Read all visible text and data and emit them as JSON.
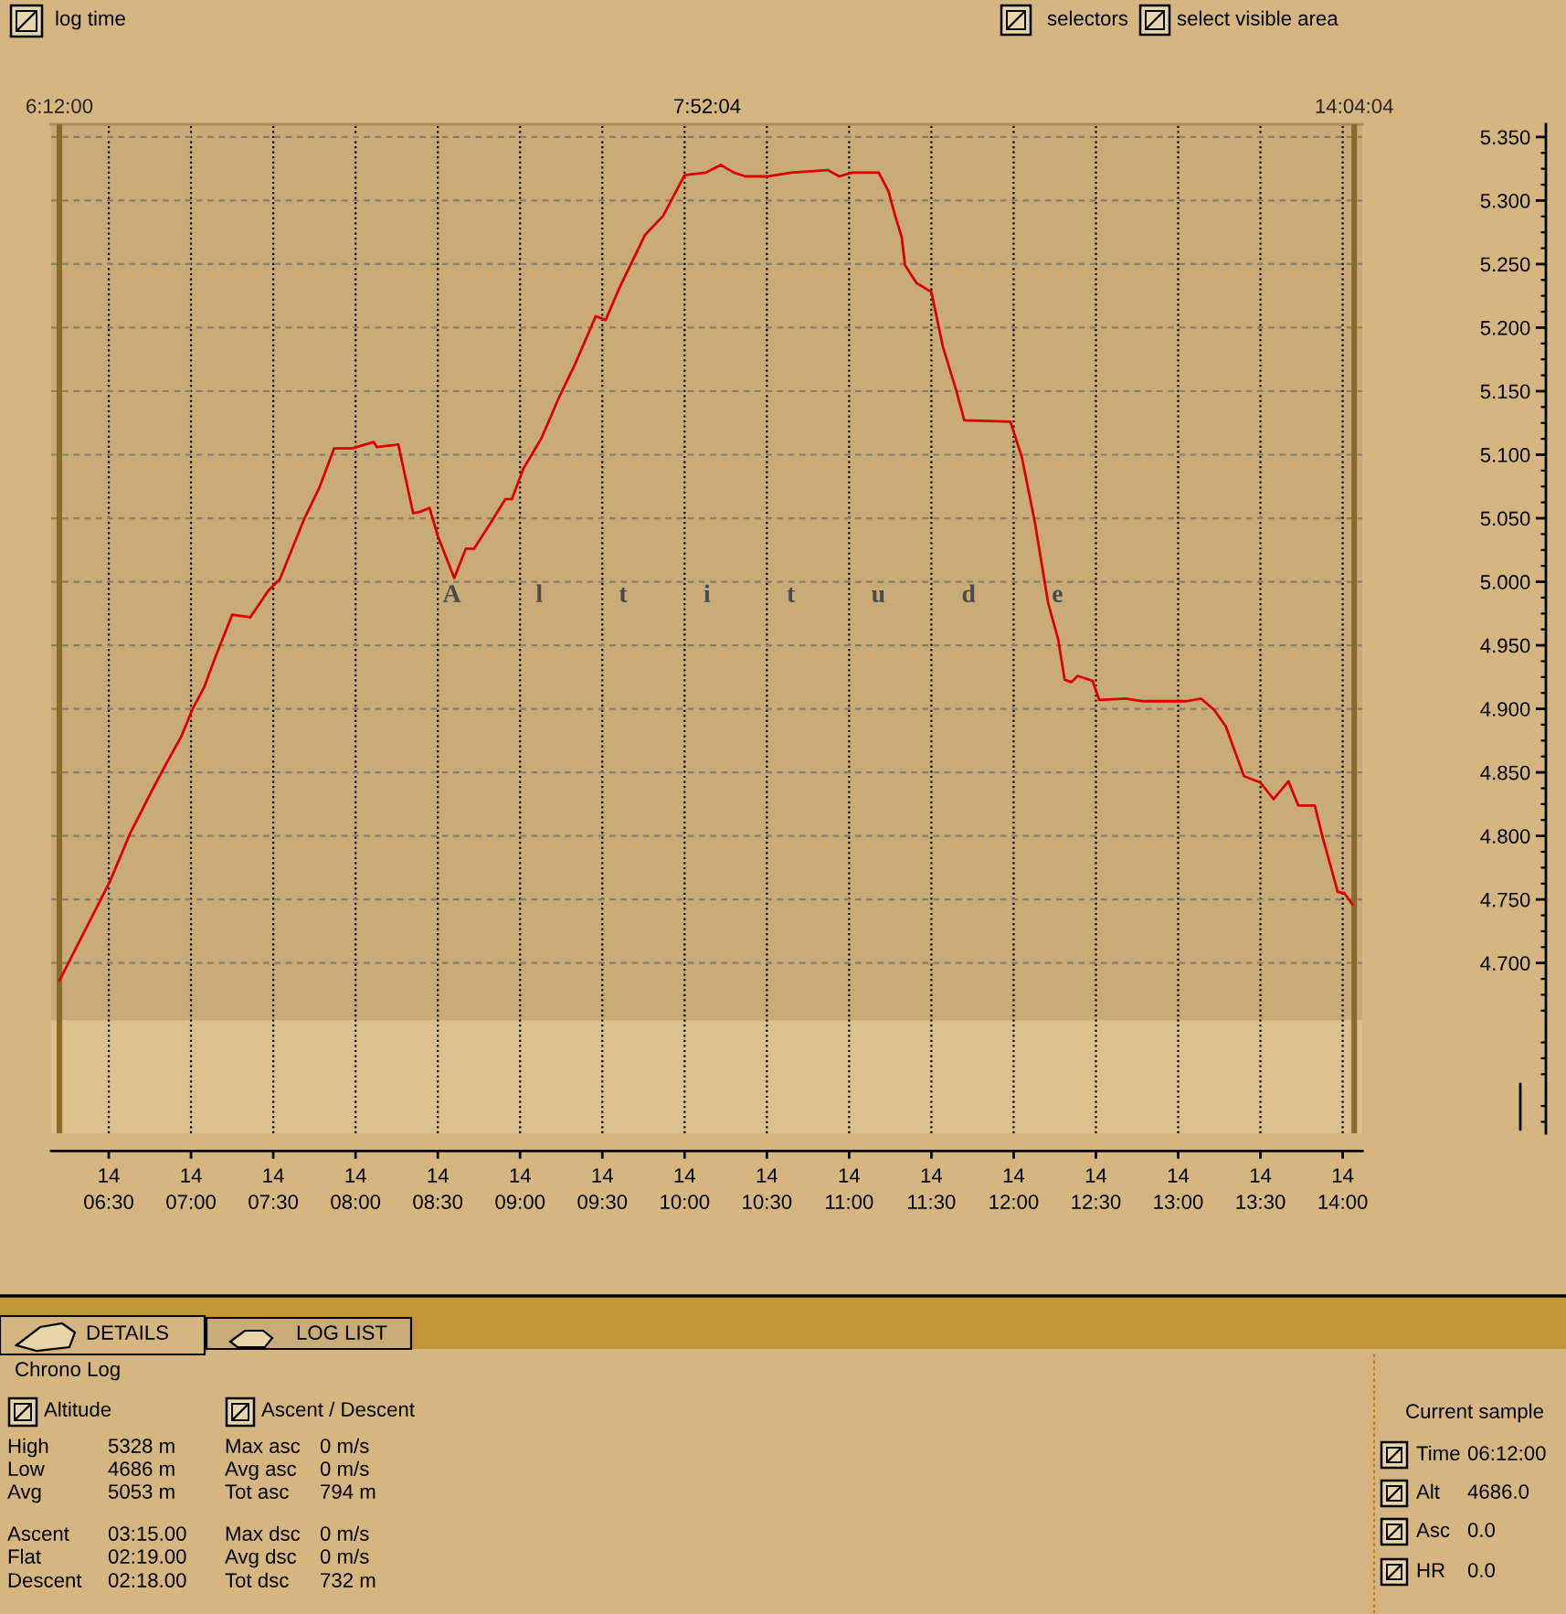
{
  "chart_data": {
    "type": "line",
    "x": [
      6.2,
      6.51,
      6.63,
      6.76,
      6.85,
      6.94,
      7.01,
      7.08,
      7.14,
      7.25,
      7.36,
      7.47,
      7.54,
      7.69,
      7.78,
      7.87,
      7.98,
      8.11,
      8.13,
      8.26,
      8.3,
      8.35,
      8.39,
      8.45,
      8.5,
      8.6,
      8.67,
      8.72,
      8.82,
      8.91,
      8.95,
      9.02,
      9.13,
      9.24,
      9.33,
      9.46,
      9.52,
      9.61,
      9.76,
      9.87,
      10.0,
      10.13,
      10.22,
      10.3,
      10.37,
      10.5,
      10.65,
      10.87,
      10.94,
      11.02,
      11.18,
      11.24,
      11.28,
      11.32,
      11.34,
      11.41,
      11.5,
      11.57,
      11.65,
      11.7,
      11.98,
      12.05,
      12.13,
      12.21,
      12.27,
      12.31,
      12.35,
      12.39,
      12.48,
      12.52,
      12.68,
      12.79,
      13.05,
      13.14,
      13.22,
      13.29,
      13.4,
      13.5,
      13.58,
      13.67,
      13.73,
      13.83,
      13.88,
      13.97,
      14.01,
      14.06
    ],
    "series": [
      {
        "color": "#dd0000",
        "values": [
          4.686,
          4.765,
          4.802,
          4.835,
          4.857,
          4.878,
          4.9,
          4.917,
          4.938,
          4.974,
          4.972,
          4.993,
          5.002,
          5.05,
          5.074,
          5.105,
          5.105,
          5.11,
          5.106,
          5.108,
          5.084,
          5.054,
          5.055,
          5.058,
          5.036,
          5.003,
          5.026,
          5.026,
          5.046,
          5.065,
          5.065,
          5.089,
          5.113,
          5.146,
          5.17,
          5.209,
          5.206,
          5.233,
          5.273,
          5.288,
          5.32,
          5.322,
          5.328,
          5.322,
          5.319,
          5.319,
          5.322,
          5.324,
          5.319,
          5.322,
          5.322,
          5.307,
          5.288,
          5.271,
          5.249,
          5.235,
          5.228,
          5.185,
          5.151,
          5.127,
          5.126,
          5.098,
          5.046,
          4.983,
          4.955,
          4.923,
          4.921,
          4.926,
          4.922,
          4.907,
          4.908,
          4.906,
          4.906,
          4.908,
          4.899,
          4.886,
          4.847,
          4.842,
          4.829,
          4.843,
          4.824,
          4.824,
          4.798,
          4.756,
          4.755,
          4.746
        ]
      }
    ],
    "xlim": [
      6.15,
      14.12
    ],
    "xticks": [
      {
        "value": 6.5,
        "label": "06:30"
      },
      {
        "value": 7.0,
        "label": "07:00"
      },
      {
        "value": 7.5,
        "label": "07:30"
      },
      {
        "value": 8.0,
        "label": "08:00"
      },
      {
        "value": 8.5,
        "label": "08:30"
      },
      {
        "value": 9.0,
        "label": "09:00"
      },
      {
        "value": 9.5,
        "label": "09:30"
      },
      {
        "value": 10.0,
        "label": "10:00"
      },
      {
        "value": 10.5,
        "label": "10:30"
      },
      {
        "value": 11.0,
        "label": "11:00"
      },
      {
        "value": 11.5,
        "label": "11:30"
      },
      {
        "value": 12.0,
        "label": "12:00"
      },
      {
        "value": 12.5,
        "label": "12:30"
      },
      {
        "value": 13.0,
        "label": "13:00"
      },
      {
        "value": 13.5,
        "label": "13:30"
      },
      {
        "value": 14.0,
        "label": "14:00"
      }
    ],
    "ylim": [
      4.566,
      5.36
    ],
    "yticks": [
      {
        "value": 4.7,
        "label": "4.700"
      },
      {
        "value": 4.75,
        "label": "4.750"
      },
      {
        "value": 4.8,
        "label": "4.800"
      },
      {
        "value": 4.85,
        "label": "4.850"
      },
      {
        "value": 4.9,
        "label": "4.900"
      },
      {
        "value": 4.95,
        "label": "4.950"
      },
      {
        "value": 5.0,
        "label": "5.000"
      },
      {
        "value": 5.05,
        "label": "5.050"
      },
      {
        "value": 5.1,
        "label": "5.100"
      },
      {
        "value": 5.15,
        "label": "5.150"
      },
      {
        "value": 5.2,
        "label": "5.200"
      },
      {
        "value": 5.25,
        "label": "5.250"
      },
      {
        "value": 5.3,
        "label": "5.300"
      },
      {
        "value": 5.35,
        "label": "5.350"
      }
    ],
    "grid": true,
    "bands": [
      {
        "axis": "y",
        "from": 4.566,
        "to": 4.655,
        "color": "#dcc18e"
      },
      {
        "axis": "y",
        "from": 4.655,
        "to": 5.36,
        "color": "#c9ab78"
      }
    ],
    "ref_lines": [
      {
        "axis": "x",
        "value": 6.2,
        "label": "6:12:00",
        "color": "#8a6a2a"
      },
      {
        "axis": "x",
        "value": 14.07,
        "label": "14:04:04",
        "color": "#8a6a2a"
      }
    ],
    "annotations": [
      "log time",
      "selectors",
      "select visible area",
      "7:52:04",
      "A l t i t u d e",
      "DETAILS",
      "LOG LIST",
      "Chrono Log",
      "Altitude",
      "Ascent / Descent",
      "High",
      "5328 m",
      "Max asc",
      "0 m/s",
      "Low",
      "4686 m",
      "Avg asc",
      "0 m/s",
      "Avg",
      "5053 m",
      "Tot asc",
      "794 m",
      "Ascent",
      "03:15.00",
      "Max dsc",
      "0 m/s",
      "Flat",
      "02:19.00",
      "Avg dsc",
      "0 m/s",
      "Descent",
      "02:18.00",
      "Tot dsc",
      "732 m",
      "Current sample",
      "Time",
      "06:12:00",
      "Alt",
      "4686.0",
      "Asc",
      "0.0",
      "HR",
      "0.0",
      "14",
      "14",
      "14",
      "14",
      "14",
      "14",
      "14",
      "14",
      "14",
      "14",
      "14",
      "14",
      "14",
      "14",
      "14",
      "14"
    ]
  }
}
